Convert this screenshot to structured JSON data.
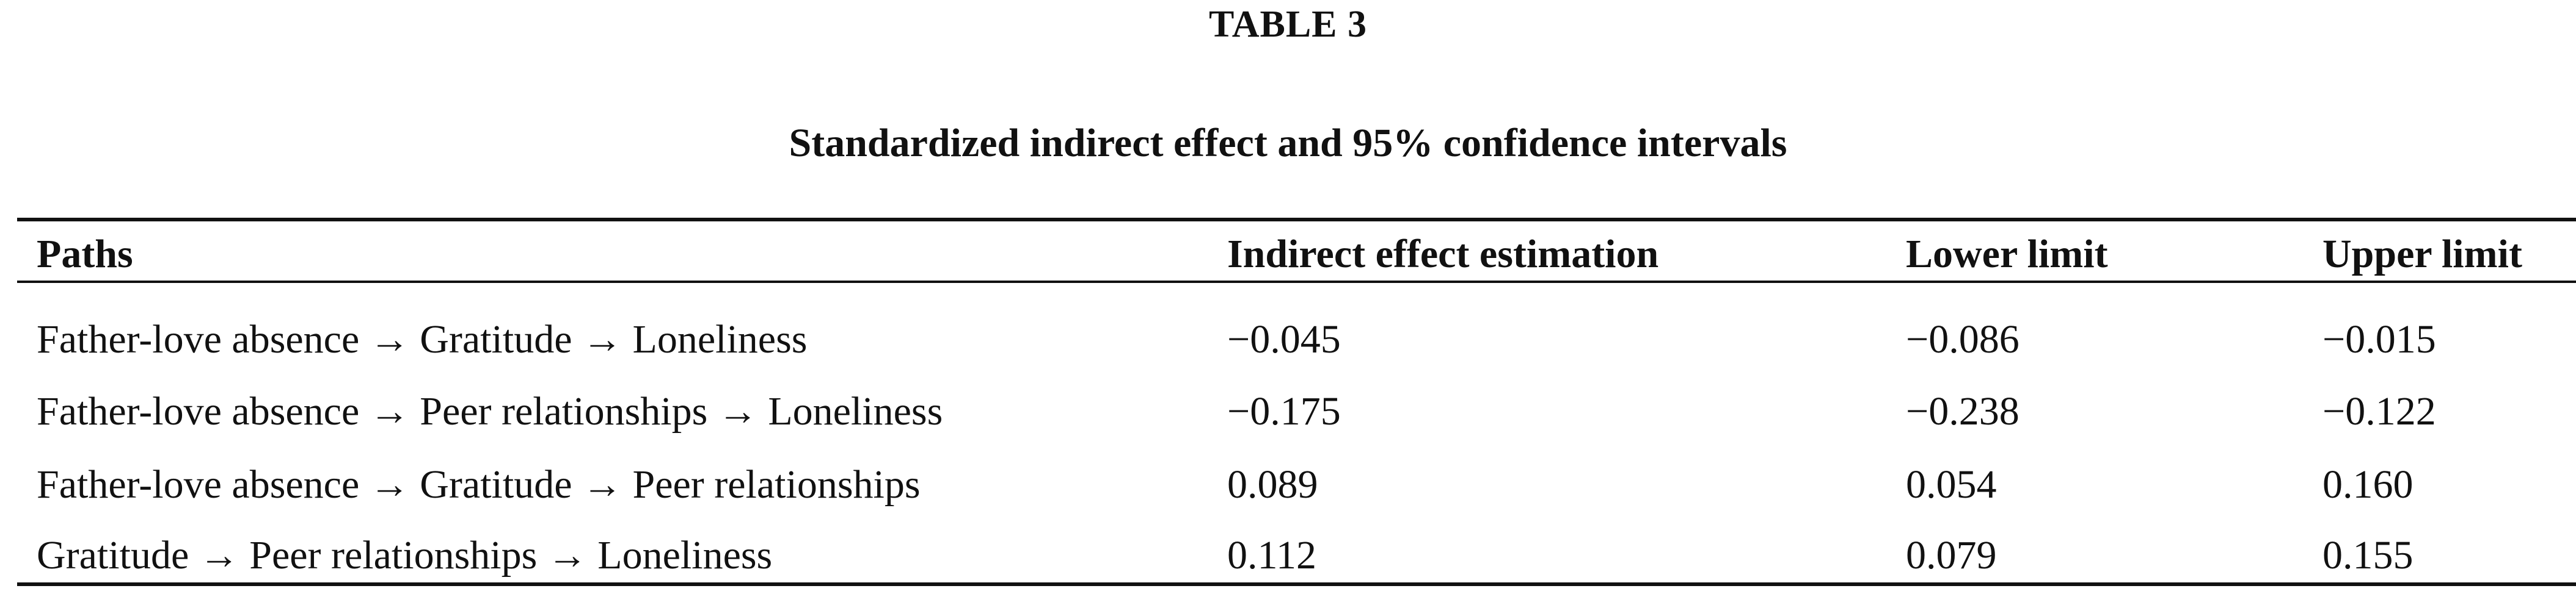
{
  "table_label": "TABLE 3",
  "caption": "Standardized indirect effect and 95% confidence intervals",
  "table": {
    "columns": [
      "Paths",
      "Indirect effect estimation",
      "Lower limit",
      "Upper limit"
    ],
    "rows": [
      [
        "Father-love absence → Gratitude → Loneliness",
        "−0.045",
        "−0.086",
        "−0.015"
      ],
      [
        "Father-love absence → Peer relationships → Loneliness",
        "−0.175",
        "−0.238",
        "−0.122"
      ],
      [
        "Father-love absence → Gratitude → Peer relationships",
        "0.089",
        "0.054",
        "0.160"
      ],
      [
        "Gratitude → Peer relationships → Loneliness",
        "0.112",
        "0.079",
        "0.155"
      ]
    ]
  }
}
